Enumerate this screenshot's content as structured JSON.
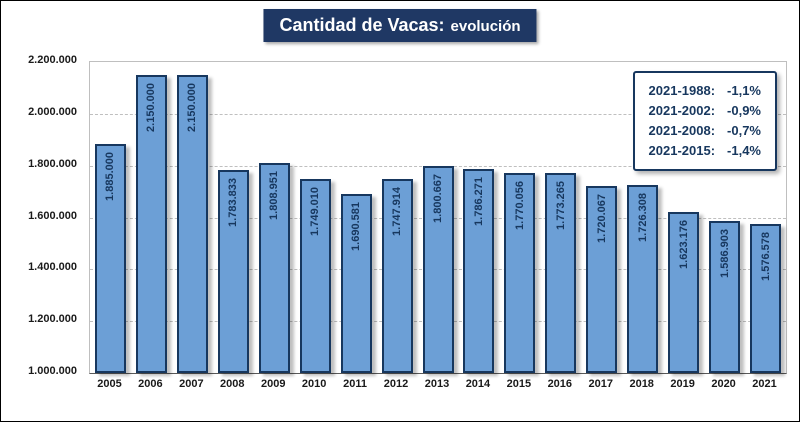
{
  "title": {
    "main": "Cantidad de Vacas:",
    "sub": "evolución"
  },
  "legend": {
    "items": [
      {
        "label": "2021-1988:",
        "value": "-1,1%"
      },
      {
        "label": "2021-2002:",
        "value": "-0,9%"
      },
      {
        "label": "2021-2008:",
        "value": "-0,7%"
      },
      {
        "label": "2021-2015:",
        "value": "-1,4%"
      }
    ]
  },
  "colors": {
    "navy": "#1F3864",
    "bar_fill": "#6C9FD6",
    "bar_border": "#17375E",
    "grid": "#BFBFBF",
    "text": "#17375E"
  },
  "chart_data": {
    "type": "bar",
    "title": "Cantidad de Vacas: evolución",
    "xlabel": "",
    "ylabel": "",
    "categories": [
      "2005",
      "2006",
      "2007",
      "2008",
      "2009",
      "2010",
      "2011",
      "2012",
      "2013",
      "2014",
      "2015",
      "2016",
      "2017",
      "2018",
      "2019",
      "2020",
      "2021"
    ],
    "values": [
      1885000,
      2150000,
      2150000,
      1783833,
      1808951,
      1749010,
      1690581,
      1747914,
      1800667,
      1786271,
      1770056,
      1773265,
      1720067,
      1726308,
      1623176,
      1586903,
      1576578
    ],
    "bar_labels": [
      "1.885.000",
      "2.150.000",
      "2.150.000",
      "1.783.833",
      "1.808.951",
      "1.749.010",
      "1.690.581",
      "1.747.914",
      "1.800.667",
      "1.786.271",
      "1.770.056",
      "1.773.265",
      "1.720.067",
      "1.726.308",
      "1.623.176",
      "1.586.903",
      "1.576.578"
    ],
    "ylim": [
      1000000,
      2200000
    ],
    "ytick_step": 200000,
    "ytick_labels": [
      "1.000.000",
      "1.200.000",
      "1.400.000",
      "1.600.000",
      "1.800.000",
      "2.000.000",
      "2.200.000"
    ],
    "grid": "horizontal-dashed",
    "legend_position": "top-right"
  }
}
